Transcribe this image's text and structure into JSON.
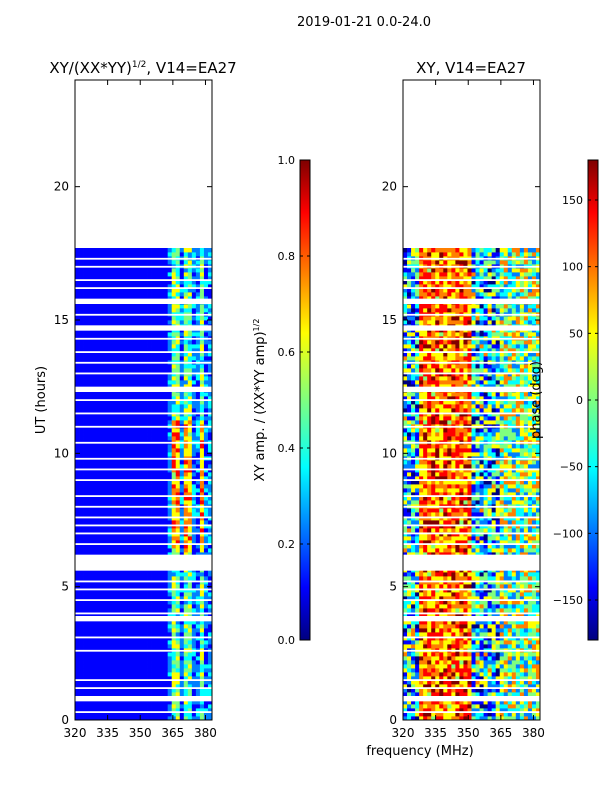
{
  "figure": {
    "suptitle": "2019-01-21 0.0-24.0",
    "xlabel": "frequency (MHz)"
  },
  "chart_data": [
    {
      "type": "heatmap",
      "title_main": "XY/(XX*YY)",
      "title_exp": "1/2",
      "title_tail": ", V14=EA27",
      "ylabel": "UT (hours)",
      "xlim": [
        320,
        383
      ],
      "ylim": [
        0,
        24
      ],
      "xticks": [
        320,
        335,
        350,
        365,
        380
      ],
      "yticks": [
        0,
        5,
        10,
        15,
        20
      ],
      "data_end_hour": 17.6,
      "gap_bands_hours": [
        [
          5.6,
          6.2
        ],
        [
          14.6,
          14.8
        ],
        [
          12.3,
          12.5
        ],
        [
          15.6,
          15.8
        ],
        [
          3.7,
          3.9
        ],
        [
          0.7,
          0.9
        ]
      ],
      "thin_gap_hours": [
        0.3,
        1.2,
        1.5,
        2.6,
        3.1,
        4.0,
        4.5,
        4.9,
        5.2,
        6.6,
        7.0,
        7.3,
        7.6,
        8.0,
        8.4,
        9.0,
        9.4,
        9.8,
        10.4,
        11.0,
        11.5,
        12.0,
        13.0,
        13.4,
        13.8,
        14.3,
        15.2,
        16.2,
        16.5,
        17.0,
        17.3
      ],
      "active_freq_ranges_mhz": [
        [
          361,
          364
        ],
        [
          364,
          372
        ],
        [
          372,
          376
        ],
        [
          376,
          383
        ]
      ],
      "colorbar": {
        "label_main": "XY amp. / (XX*YY amp)",
        "label_exp": "1/2",
        "range": [
          0.0,
          1.0
        ],
        "ticks": [
          "0.0",
          "0.2",
          "0.4",
          "0.6",
          "0.8",
          "1.0"
        ],
        "tick_values": [
          0.0,
          0.2,
          0.4,
          0.6,
          0.8,
          1.0
        ]
      }
    },
    {
      "type": "heatmap",
      "title_main": "XY, V14=EA27",
      "ylabel": "",
      "xlim": [
        320,
        383
      ],
      "ylim": [
        0,
        24
      ],
      "xticks": [
        320,
        335,
        350,
        365,
        380
      ],
      "yticks": [
        0,
        5,
        10,
        15,
        20
      ],
      "data_end_hour": 17.6,
      "colorbar": {
        "label_main": "phase (deg)",
        "range": [
          -180,
          180
        ],
        "ticks": [
          "150",
          "100",
          "50",
          "0",
          "−50",
          "−100",
          "−150"
        ],
        "tick_values": [
          150,
          100,
          50,
          0,
          -50,
          -100,
          -150
        ]
      }
    }
  ],
  "colors": {
    "jet": [
      "#00007f",
      "#0000ff",
      "#007fff",
      "#00ffff",
      "#7fff7f",
      "#ffff00",
      "#ff7f00",
      "#ff0000",
      "#7f0000"
    ]
  }
}
